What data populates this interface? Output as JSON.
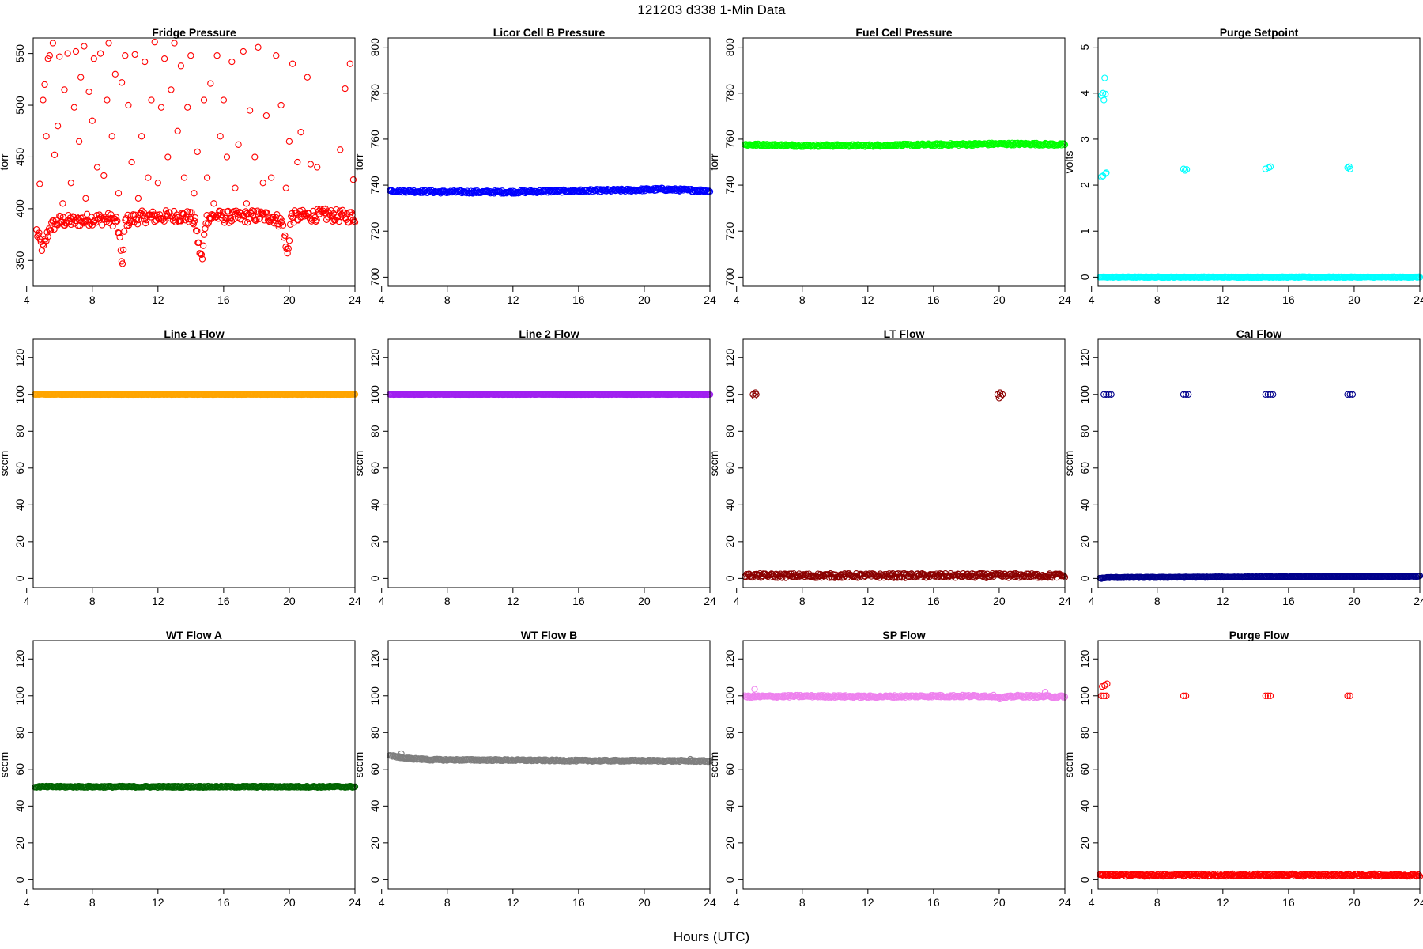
{
  "figure": {
    "title": "121203    d338    1-Min Data",
    "xlabel": "Hours (UTC)"
  },
  "chart_data": [
    {
      "type": "scatter",
      "title": "Fridge Pressure",
      "ylabel": "torr",
      "color": "#ff0000",
      "xlim": [
        4.4,
        24
      ],
      "ylim": [
        325,
        565
      ],
      "xticks": [
        4,
        8,
        12,
        16,
        20,
        24
      ],
      "yticks": [
        350,
        400,
        450,
        500,
        550
      ],
      "baseline": [
        [
          4.6,
          378
        ],
        [
          5.0,
          360
        ],
        [
          5.4,
          382
        ],
        [
          6,
          388
        ],
        [
          7,
          388
        ],
        [
          8,
          390
        ],
        [
          9,
          390
        ],
        [
          9.5,
          388
        ],
        [
          9.7,
          364
        ],
        [
          9.85,
          345
        ],
        [
          10.0,
          388
        ],
        [
          11,
          392
        ],
        [
          12,
          392
        ],
        [
          13,
          393
        ],
        [
          14,
          392
        ],
        [
          14.3,
          385
        ],
        [
          14.5,
          362
        ],
        [
          14.7,
          350
        ],
        [
          14.9,
          390
        ],
        [
          15.5,
          393
        ],
        [
          16,
          392
        ],
        [
          17,
          392
        ],
        [
          18,
          393
        ],
        [
          19,
          392
        ],
        [
          19.6,
          386
        ],
        [
          19.8,
          362
        ],
        [
          19.9,
          355
        ],
        [
          20.1,
          392
        ],
        [
          21,
          393
        ],
        [
          22,
          394
        ],
        [
          23,
          393
        ],
        [
          24,
          392
        ]
      ],
      "baseline_spread": 6,
      "outliers": [
        [
          4.8,
          424
        ],
        [
          5.0,
          505
        ],
        [
          5.1,
          520
        ],
        [
          5.2,
          470
        ],
        [
          5.3,
          545
        ],
        [
          5.4,
          548
        ],
        [
          5.6,
          560
        ],
        [
          5.7,
          452
        ],
        [
          5.9,
          480
        ],
        [
          6.0,
          547
        ],
        [
          6.2,
          405
        ],
        [
          6.3,
          515
        ],
        [
          6.5,
          550
        ],
        [
          6.7,
          425
        ],
        [
          6.9,
          498
        ],
        [
          7.0,
          552
        ],
        [
          7.2,
          465
        ],
        [
          7.3,
          527
        ],
        [
          7.5,
          557
        ],
        [
          7.6,
          410
        ],
        [
          7.8,
          513
        ],
        [
          8.0,
          485
        ],
        [
          8.1,
          545
        ],
        [
          8.3,
          440
        ],
        [
          8.5,
          550
        ],
        [
          8.7,
          432
        ],
        [
          8.9,
          505
        ],
        [
          9.0,
          560
        ],
        [
          9.2,
          470
        ],
        [
          9.4,
          530
        ],
        [
          9.6,
          415
        ],
        [
          9.8,
          522
        ],
        [
          10.0,
          548
        ],
        [
          10.2,
          500
        ],
        [
          10.4,
          445
        ],
        [
          10.6,
          549
        ],
        [
          10.8,
          410
        ],
        [
          11.0,
          470
        ],
        [
          11.2,
          542
        ],
        [
          11.4,
          430
        ],
        [
          11.6,
          505
        ],
        [
          11.8,
          561
        ],
        [
          12.0,
          425
        ],
        [
          12.2,
          498
        ],
        [
          12.4,
          545
        ],
        [
          12.6,
          450
        ],
        [
          12.8,
          515
        ],
        [
          13.0,
          560
        ],
        [
          13.2,
          475
        ],
        [
          13.4,
          538
        ],
        [
          13.6,
          430
        ],
        [
          13.8,
          498
        ],
        [
          14.0,
          548
        ],
        [
          14.2,
          415
        ],
        [
          14.4,
          455
        ],
        [
          14.8,
          505
        ],
        [
          15.0,
          430
        ],
        [
          15.2,
          521
        ],
        [
          15.4,
          405
        ],
        [
          15.6,
          548
        ],
        [
          15.8,
          470
        ],
        [
          16.0,
          505
        ],
        [
          16.2,
          450
        ],
        [
          16.5,
          542
        ],
        [
          16.7,
          420
        ],
        [
          16.9,
          462
        ],
        [
          17.2,
          552
        ],
        [
          17.4,
          405
        ],
        [
          17.6,
          495
        ],
        [
          17.9,
          450
        ],
        [
          18.1,
          556
        ],
        [
          18.4,
          425
        ],
        [
          18.6,
          490
        ],
        [
          18.9,
          430
        ],
        [
          19.2,
          548
        ],
        [
          19.5,
          500
        ],
        [
          19.8,
          420
        ],
        [
          20.0,
          465
        ],
        [
          20.2,
          540
        ],
        [
          20.5,
          445
        ],
        [
          20.7,
          474
        ],
        [
          21.1,
          527
        ],
        [
          21.3,
          443
        ],
        [
          21.7,
          440
        ],
        [
          22.2,
          400
        ],
        [
          23.1,
          457
        ],
        [
          23.4,
          516
        ],
        [
          23.7,
          540
        ],
        [
          23.9,
          428
        ]
      ]
    },
    {
      "type": "scatter",
      "title": "Licor Cell B Pressure",
      "ylabel": "torr",
      "color": "#0000ff",
      "xlim": [
        4.4,
        24
      ],
      "ylim": [
        696,
        804
      ],
      "xticks": [
        4,
        8,
        12,
        16,
        20,
        24
      ],
      "yticks": [
        700,
        720,
        740,
        760,
        780,
        800
      ],
      "baseline": [
        [
          4.5,
          737.5
        ],
        [
          8,
          737
        ],
        [
          12,
          737
        ],
        [
          14,
          737.3
        ],
        [
          16,
          737.5
        ],
        [
          19,
          737.8
        ],
        [
          21,
          738.2
        ],
        [
          24,
          737.5
        ]
      ],
      "baseline_spread": 0.6
    },
    {
      "type": "scatter",
      "title": "Fuel Cell Pressure",
      "ylabel": "torr",
      "color": "#00ff00",
      "xlim": [
        4.4,
        24
      ],
      "ylim": [
        696,
        804
      ],
      "xticks": [
        4,
        8,
        12,
        16,
        20,
        24
      ],
      "yticks": [
        700,
        720,
        740,
        760,
        780,
        800
      ],
      "baseline": [
        [
          4.5,
          757.6
        ],
        [
          8,
          757.2
        ],
        [
          12,
          757.2
        ],
        [
          16,
          757.6
        ],
        [
          20,
          757.9
        ],
        [
          22,
          757.9
        ],
        [
          24,
          757.6
        ]
      ],
      "baseline_spread": 0.5
    },
    {
      "type": "scatter",
      "title": "Purge Setpoint",
      "ylabel": "volts",
      "color": "#00ffff",
      "xlim": [
        4.4,
        24
      ],
      "ylim": [
        -0.2,
        5.2
      ],
      "xticks": [
        4,
        8,
        12,
        16,
        20,
        24
      ],
      "yticks": [
        0,
        1,
        2,
        3,
        4,
        5
      ],
      "baseline": [
        [
          4.5,
          0
        ],
        [
          24,
          0
        ]
      ],
      "baseline_spread": 0.01,
      "clusters": [
        [
          4.6,
          3.95
        ],
        [
          4.7,
          4.0
        ],
        [
          4.75,
          3.85
        ],
        [
          4.85,
          3.98
        ],
        [
          4.8,
          4.33
        ],
        [
          4.6,
          2.18
        ],
        [
          4.7,
          2.2
        ],
        [
          4.85,
          2.25
        ],
        [
          4.9,
          2.27
        ],
        [
          9.6,
          2.35
        ],
        [
          9.7,
          2.32
        ],
        [
          9.8,
          2.34
        ],
        [
          14.6,
          2.35
        ],
        [
          14.8,
          2.38
        ],
        [
          14.9,
          2.4
        ],
        [
          19.6,
          2.38
        ],
        [
          19.7,
          2.4
        ],
        [
          19.75,
          2.35
        ]
      ]
    },
    {
      "type": "scatter",
      "title": "Line 1 Flow",
      "ylabel": "sccm",
      "color": "#ffa500",
      "xlim": [
        4.4,
        24
      ],
      "ylim": [
        -5,
        130
      ],
      "xticks": [
        4,
        8,
        12,
        16,
        20,
        24
      ],
      "yticks": [
        0,
        20,
        40,
        60,
        80,
        100,
        120
      ],
      "baseline": [
        [
          4.5,
          100
        ],
        [
          24,
          100
        ]
      ],
      "baseline_spread": 0.1
    },
    {
      "type": "scatter",
      "title": "Line 2 Flow",
      "ylabel": "sccm",
      "color": "#a020f0",
      "xlim": [
        4.4,
        24
      ],
      "ylim": [
        -5,
        130
      ],
      "xticks": [
        4,
        8,
        12,
        16,
        20,
        24
      ],
      "yticks": [
        0,
        20,
        40,
        60,
        80,
        100,
        120
      ],
      "baseline": [
        [
          4.5,
          100
        ],
        [
          24,
          100
        ]
      ],
      "baseline_spread": 0.1
    },
    {
      "type": "scatter",
      "title": "LT Flow",
      "ylabel": "sccm",
      "color": "#8b0000",
      "xlim": [
        4.4,
        24
      ],
      "ylim": [
        -5,
        130
      ],
      "xticks": [
        4,
        8,
        12,
        16,
        20,
        24
      ],
      "yticks": [
        0,
        20,
        40,
        60,
        80,
        100,
        120
      ],
      "baseline": [
        [
          4.5,
          1.5
        ],
        [
          24,
          1.5
        ]
      ],
      "baseline_spread": 1.2,
      "clusters": [
        [
          5.0,
          100
        ],
        [
          5.1,
          99
        ],
        [
          5.15,
          101
        ],
        [
          5.2,
          100
        ],
        [
          19.9,
          100
        ],
        [
          20.0,
          98
        ],
        [
          20.05,
          101
        ],
        [
          20.1,
          99
        ],
        [
          20.2,
          100
        ]
      ]
    },
    {
      "type": "scatter",
      "title": "Cal Flow",
      "ylabel": "sccm",
      "color": "#00008b",
      "xlim": [
        4.4,
        24
      ],
      "ylim": [
        -5,
        130
      ],
      "xticks": [
        4,
        8,
        12,
        16,
        20,
        24
      ],
      "yticks": [
        0,
        20,
        40,
        60,
        80,
        100,
        120
      ],
      "baseline": [
        [
          4.5,
          0
        ],
        [
          5.0,
          0.5
        ],
        [
          24,
          1.2
        ]
      ],
      "baseline_spread": 0.2,
      "clusters": [
        [
          4.75,
          100
        ],
        [
          4.9,
          100
        ],
        [
          5.05,
          100
        ],
        [
          5.2,
          100
        ],
        [
          9.6,
          100
        ],
        [
          9.75,
          100
        ],
        [
          9.9,
          100
        ],
        [
          14.6,
          100
        ],
        [
          14.75,
          100
        ],
        [
          14.9,
          100
        ],
        [
          15.05,
          100
        ],
        [
          19.6,
          100
        ],
        [
          19.75,
          100
        ],
        [
          19.9,
          100
        ]
      ]
    },
    {
      "type": "scatter",
      "title": "WT Flow A",
      "ylabel": "sccm",
      "color": "#006400",
      "xlim": [
        4.4,
        24
      ],
      "ylim": [
        -5,
        130
      ],
      "xticks": [
        4,
        8,
        12,
        16,
        20,
        24
      ],
      "yticks": [
        0,
        20,
        40,
        60,
        80,
        100,
        120
      ],
      "baseline": [
        [
          4.5,
          50.5
        ],
        [
          24,
          50.5
        ]
      ],
      "baseline_spread": 0.4
    },
    {
      "type": "scatter",
      "title": "WT Flow B",
      "ylabel": "sccm",
      "color": "#7f7f7f",
      "xlim": [
        4.4,
        24
      ],
      "ylim": [
        -5,
        130
      ],
      "xticks": [
        4,
        8,
        12,
        16,
        20,
        24
      ],
      "yticks": [
        0,
        20,
        40,
        60,
        80,
        100,
        120
      ],
      "baseline": [
        [
          4.5,
          67.5
        ],
        [
          5.5,
          66
        ],
        [
          7,
          65.2
        ],
        [
          12,
          65
        ],
        [
          16,
          64.7
        ],
        [
          20,
          64.7
        ],
        [
          24,
          64.5
        ]
      ],
      "baseline_spread": 0.4,
      "clusters": [
        [
          5.2,
          68.5
        ],
        [
          22.8,
          65.5
        ]
      ]
    },
    {
      "type": "scatter",
      "title": "SP Flow",
      "ylabel": "sccm",
      "color": "#ee82ee",
      "xlim": [
        4.4,
        24
      ],
      "ylim": [
        -5,
        130
      ],
      "xticks": [
        4,
        8,
        12,
        16,
        20,
        24
      ],
      "yticks": [
        0,
        20,
        40,
        60,
        80,
        100,
        120
      ],
      "baseline": [
        [
          4.5,
          99.5
        ],
        [
          8,
          99.8
        ],
        [
          12,
          99.5
        ],
        [
          16,
          99.8
        ],
        [
          19.8,
          99.8
        ],
        [
          20,
          98.8
        ],
        [
          21,
          99.8
        ],
        [
          24,
          99.5
        ]
      ],
      "baseline_spread": 0.6,
      "clusters": [
        [
          5.1,
          103.5
        ],
        [
          22.8,
          102
        ]
      ]
    },
    {
      "type": "scatter",
      "title": "Purge Flow",
      "ylabel": "sccm",
      "color": "#ff0000",
      "xlim": [
        4.4,
        24
      ],
      "ylim": [
        -5,
        130
      ],
      "xticks": [
        4,
        8,
        12,
        16,
        20,
        24
      ],
      "yticks": [
        0,
        20,
        40,
        60,
        80,
        100,
        120
      ],
      "baseline": [
        [
          4.5,
          2.5
        ],
        [
          24,
          2.5
        ]
      ],
      "baseline_spread": 0.7,
      "clusters": [
        [
          4.6,
          100
        ],
        [
          4.75,
          100
        ],
        [
          4.9,
          100
        ],
        [
          4.65,
          105
        ],
        [
          4.8,
          105.5
        ],
        [
          4.95,
          106.5
        ],
        [
          9.6,
          100
        ],
        [
          9.75,
          100
        ],
        [
          14.6,
          100
        ],
        [
          14.75,
          100
        ],
        [
          14.9,
          100
        ],
        [
          19.6,
          100
        ],
        [
          19.75,
          100
        ]
      ]
    }
  ]
}
